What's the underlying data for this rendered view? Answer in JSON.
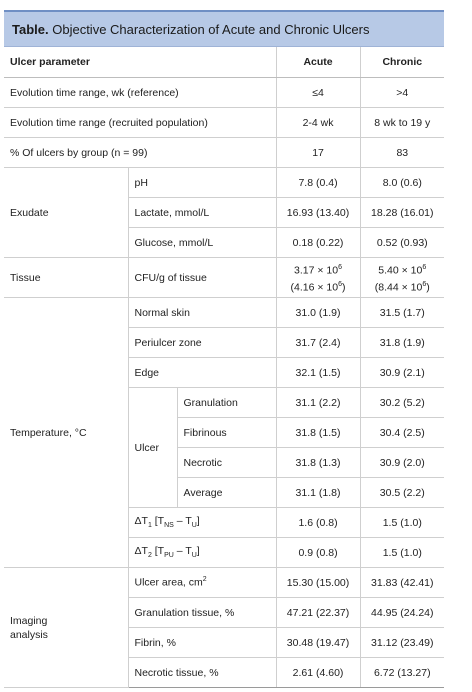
{
  "caption": {
    "label": "Table.",
    "title": "Objective Characterization of Acute and Chronic Ulcers"
  },
  "header": {
    "param": "Ulcer parameter",
    "acute": "Acute",
    "chronic": "Chronic"
  },
  "rows": {
    "evo_ref": {
      "label": "Evolution time range, wk (reference)",
      "acute": "≤4",
      "chronic": ">4"
    },
    "evo_rec": {
      "label": "Evolution time range (recruited population)",
      "acute": "2-4 wk",
      "chronic": "8 wk to 19 y"
    },
    "pct": {
      "label": "% Of ulcers by group (n = 99)",
      "acute": "17",
      "chronic": "83"
    },
    "exudate": {
      "group": "Exudate",
      "ph": {
        "label": "pH",
        "acute": "7.8 (0.4)",
        "chronic": "8.0 (0.6)"
      },
      "lactate": {
        "label": "Lactate, mmol/L",
        "acute": "16.93 (13.40)",
        "chronic": "18.28 (16.01)"
      },
      "glucose": {
        "label": "Glucose, mmol/L",
        "acute": "0.18 (0.22)",
        "chronic": "0.52 (0.93)"
      }
    },
    "tissue": {
      "group": "Tissue",
      "label": "CFU/g of tissue",
      "acute_line1_base": "3.17 × 10",
      "acute_line1_exp": "6",
      "acute_line2_base": "(4.16 × 10",
      "acute_line2_exp": "6",
      "acute_line2_close": ")",
      "chronic_line1_base": "5.40 × 10",
      "chronic_line1_exp": "6",
      "chronic_line2_base": "(8.44 × 10",
      "chronic_line2_exp": "6",
      "chronic_line2_close": ")"
    },
    "temperature": {
      "group": "Temperature, °C",
      "normal": {
        "label": "Normal skin",
        "acute": "31.0 (1.9)",
        "chronic": "31.5 (1.7)"
      },
      "periulcer": {
        "label": "Periulcer zone",
        "acute": "31.7 (2.4)",
        "chronic": "31.8 (1.9)"
      },
      "edge": {
        "label": "Edge",
        "acute": "32.1 (1.5)",
        "chronic": "30.9 (2.1)"
      },
      "ulcer": {
        "label": "Ulcer",
        "granulation": {
          "label": "Granulation",
          "acute": "31.1 (2.2)",
          "chronic": "30.2 (5.2)"
        },
        "fibrinous": {
          "label": "Fibrinous",
          "acute": "31.8 (1.5)",
          "chronic": "30.4 (2.5)"
        },
        "necrotic": {
          "label": "Necrotic",
          "acute": "31.8 (1.3)",
          "chronic": "30.9 (2.0)"
        },
        "average": {
          "label": "Average",
          "acute": "31.1 (1.8)",
          "chronic": "30.5 (2.2)"
        }
      },
      "dt1": {
        "delta": "ΔT",
        "sub": "1",
        "open": " [T",
        "s1": "NS",
        "mid": " – T",
        "s2": "U",
        "close": "]",
        "acute": "1.6 (0.8)",
        "chronic": "1.5 (1.0)"
      },
      "dt2": {
        "delta": "ΔT",
        "sub": "2",
        "open": " [T",
        "s1": "PU",
        "mid": " – T",
        "s2": "U",
        "close": "]",
        "acute": "0.9 (0.8)",
        "chronic": "1.5 (1.0)"
      }
    },
    "imaging": {
      "group_line1": "Imaging",
      "group_line2": "analysis",
      "area": {
        "label_base": "Ulcer area, cm",
        "label_exp": "2",
        "acute": "15.30 (15.00)",
        "chronic": "31.83 (42.41)"
      },
      "gran": {
        "label": "Granulation tissue, %",
        "acute": "47.21 (22.37)",
        "chronic": "44.95 (24.24)"
      },
      "fibrin": {
        "label": "Fibrin, %",
        "acute": "30.48 (19.47)",
        "chronic": "31.12 (23.49)"
      },
      "necrotic": {
        "label": "Necrotic tissue, %",
        "acute": "2.61 (4.60)",
        "chronic": "6.72 (13.27)"
      }
    }
  }
}
